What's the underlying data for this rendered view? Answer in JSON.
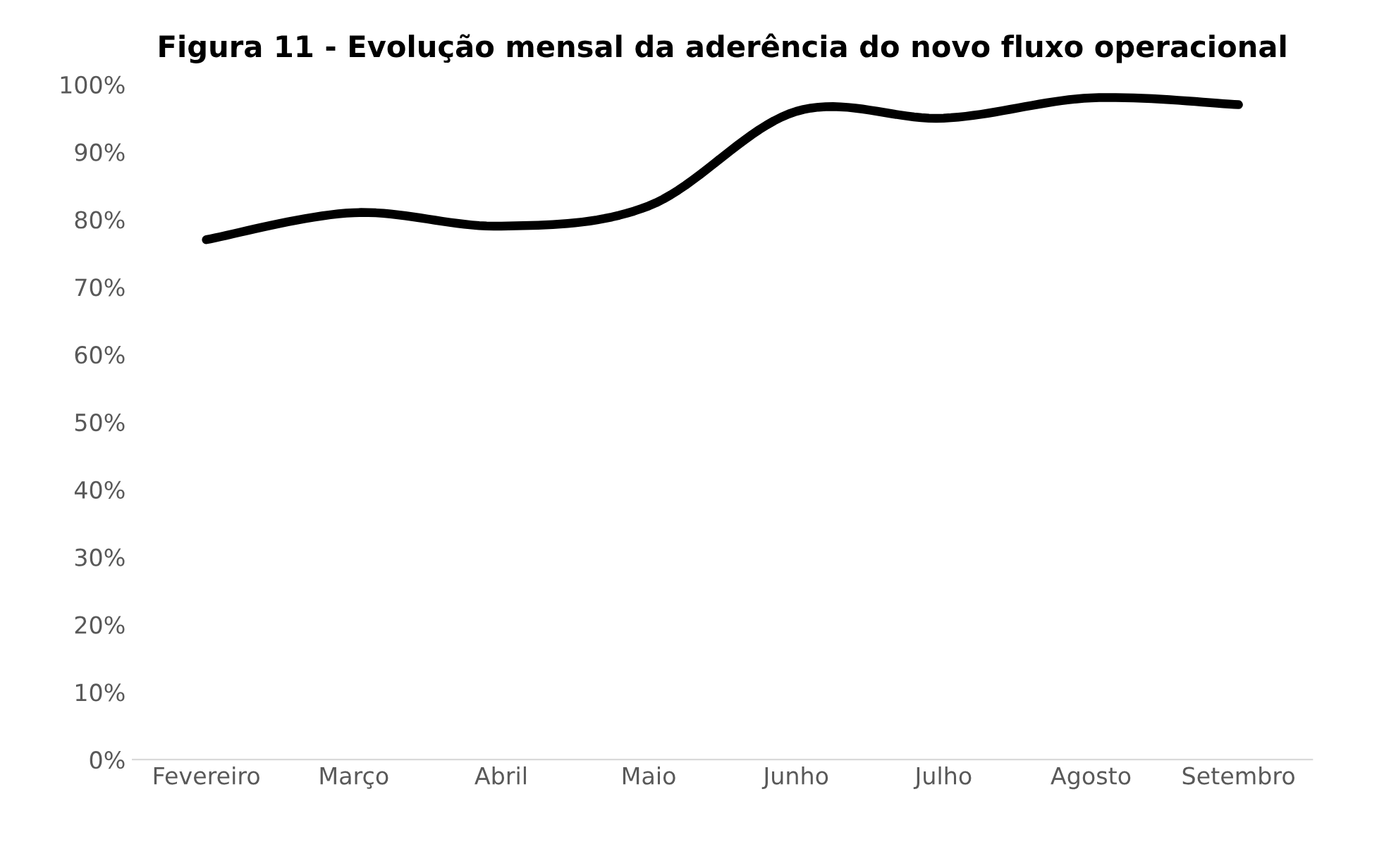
{
  "chart_data": {
    "type": "line",
    "title": "Figura 11 - Evolução mensal da aderência do novo fluxo operacional",
    "categories": [
      "Fevereiro",
      "Março",
      "Abril",
      "Maio",
      "Junho",
      "Julho",
      "Agosto",
      "Setembro"
    ],
    "series": [
      {
        "color": "#000000",
        "values": [
          77,
          81,
          79,
          82,
          96,
          95,
          98,
          97
        ]
      }
    ],
    "ylim": [
      0,
      100
    ],
    "yticks": [
      {
        "value": 0,
        "label": "0%"
      },
      {
        "value": 10,
        "label": "10%"
      },
      {
        "value": 20,
        "label": "20%"
      },
      {
        "value": 30,
        "label": "30%"
      },
      {
        "value": 40,
        "label": "40%"
      },
      {
        "value": 50,
        "label": "50%"
      },
      {
        "value": 60,
        "label": "60%"
      },
      {
        "value": 70,
        "label": "70%"
      },
      {
        "value": 80,
        "label": "80%"
      },
      {
        "value": 90,
        "label": "90%"
      },
      {
        "value": 100,
        "label": "100%"
      }
    ],
    "grid": false,
    "marker": "none",
    "line_style": "solid"
  }
}
